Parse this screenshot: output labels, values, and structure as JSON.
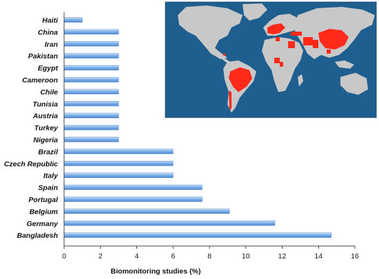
{
  "chart_data": {
    "type": "bar",
    "orientation": "horizontal",
    "categories": [
      "Haiti",
      "China",
      "Iran",
      "Pakistan",
      "Egypt",
      "Cameroon",
      "Chile",
      "Tunisia",
      "Austria",
      "Turkey",
      "Nigeria",
      "Brazil",
      "Czech Republic",
      "Italy",
      "Spain",
      "Portugal",
      "Belgium",
      "Germany",
      "Bangladesh"
    ],
    "values": [
      1.0,
      3.0,
      3.0,
      3.0,
      3.0,
      3.0,
      3.0,
      3.0,
      3.0,
      3.0,
      3.0,
      6.0,
      6.0,
      6.0,
      7.6,
      7.6,
      9.1,
      11.6,
      14.7
    ],
    "xlabel": "Biomonitoring studies (%)",
    "xlim": [
      0,
      16
    ],
    "xticks": [
      "0",
      "2",
      "4",
      "6",
      "8",
      "10",
      "12",
      "14",
      "16"
    ],
    "bar_color": "#7fb0e6",
    "grid": false
  },
  "inset_map": {
    "type": "world-map",
    "ocean_color": "#1f5f8f",
    "land_color": "#c8c8c8",
    "highlight_color": "#ff2a1a",
    "highlighted_regions": [
      "Haiti",
      "China",
      "Iran",
      "Pakistan",
      "Egypt",
      "Cameroon",
      "Chile",
      "Tunisia",
      "Austria",
      "Turkey",
      "Nigeria",
      "Brazil",
      "Czech Republic",
      "Italy",
      "Spain",
      "Portugal",
      "Belgium",
      "Germany",
      "Bangladesh"
    ]
  }
}
